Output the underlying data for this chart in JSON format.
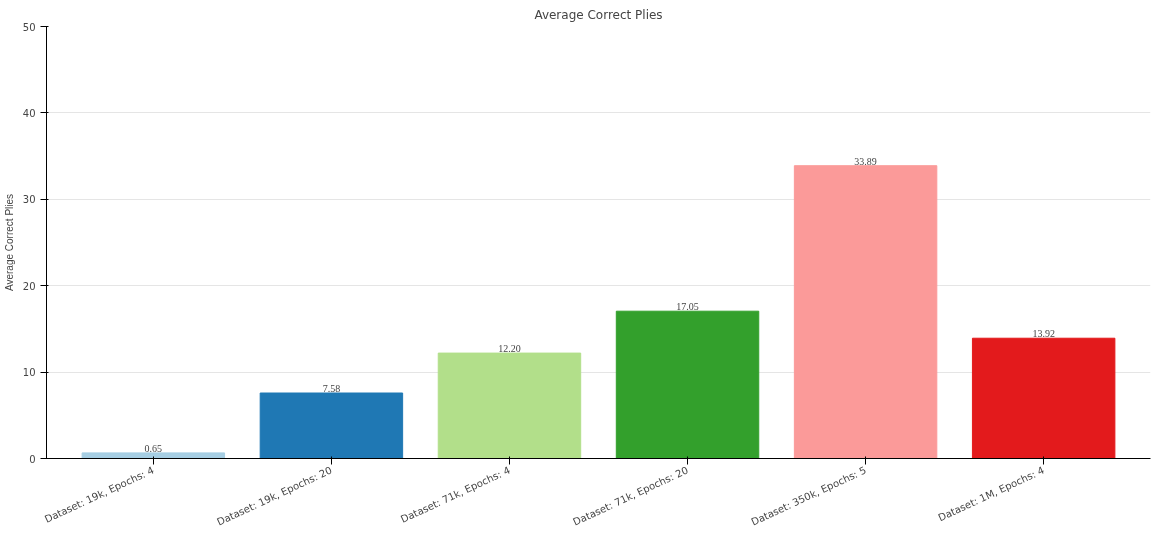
{
  "chart_data": {
    "type": "bar",
    "title": "Average Correct Plies",
    "ylabel": "Average Correct Plies",
    "categories": [
      "Dataset: 19k, Epochs: 4",
      "Dataset: 19k, Epochs: 20",
      "Dataset: 71k, Epochs: 4",
      "Dataset: 71k, Epochs: 20",
      "Dataset: 350k, Epochs: 5",
      "Dataset: 1M, Epochs: 4"
    ],
    "values": [
      0.65,
      7.58,
      12.2,
      17.05,
      33.89,
      13.92
    ],
    "value_labels": [
      "0.65",
      "7.58",
      "12.20",
      "17.05",
      "33.89",
      "13.92"
    ],
    "colors": [
      "#a6cee3",
      "#1f78b4",
      "#b2df8a",
      "#33a02c",
      "#fb9a99",
      "#e31a1c"
    ],
    "ylim": [
      0,
      50
    ],
    "yticks": [
      0,
      10,
      20,
      30,
      40,
      50
    ],
    "grid": "y"
  }
}
